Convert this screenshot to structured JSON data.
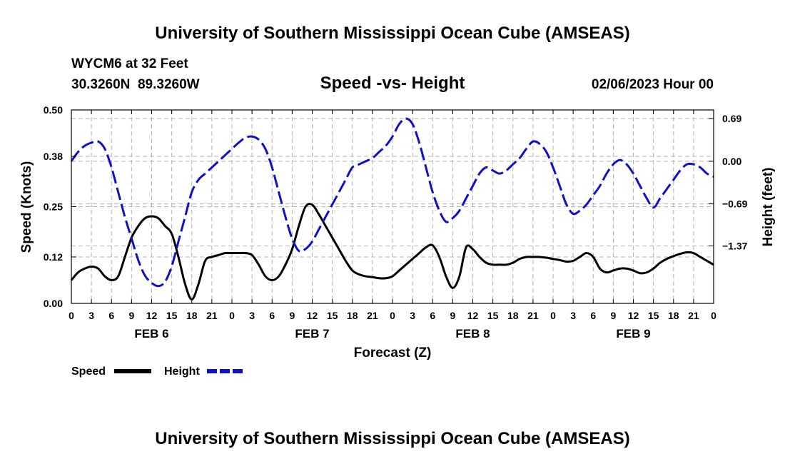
{
  "page": {
    "title_top": "University of Southern Mississippi Ocean Cube (AMSEAS)",
    "title_bottom": "University of Southern Mississippi Ocean Cube (AMSEAS)",
    "station": "WYCM6 at 32 Feet",
    "coordinates": "30.3260N  89.3260W",
    "chart_title": "Speed -vs- Height",
    "datetime": "02/06/2023 Hour 00"
  },
  "chart_data": {
    "type": "line",
    "title": "Speed -vs- Height",
    "xlabel": "Forecast (Z)",
    "ylabel": "Speed (Knots)",
    "y2label": "Height (feet)",
    "xlim": [
      0,
      96
    ],
    "ylim": [
      0,
      0.5
    ],
    "y2lim": [
      -2.3,
      0.83
    ],
    "grid": true,
    "x_ticks": [
      0,
      3,
      6,
      9,
      12,
      15,
      18,
      21,
      24,
      27,
      30,
      33,
      36,
      39,
      42,
      45,
      48,
      51,
      54,
      57,
      60,
      63,
      66,
      69,
      72,
      75,
      78,
      81,
      84,
      87,
      90,
      93,
      96
    ],
    "x_tick_labels": [
      "0",
      "3",
      "6",
      "9",
      "12",
      "15",
      "18",
      "21",
      "0",
      "3",
      "6",
      "9",
      "12",
      "15",
      "18",
      "21",
      "0",
      "3",
      "6",
      "9",
      "12",
      "15",
      "18",
      "21",
      "0",
      "3",
      "6",
      "9",
      "12",
      "15",
      "18",
      "21",
      "0"
    ],
    "day_labels": [
      {
        "label": "FEB 6",
        "x": 12
      },
      {
        "label": "FEB 7",
        "x": 36
      },
      {
        "label": "FEB 8",
        "x": 60
      },
      {
        "label": "FEB 9",
        "x": 84
      }
    ],
    "y_ticks": [
      0.0,
      0.12,
      0.25,
      0.38,
      0.5
    ],
    "y_tick_labels": [
      "0.00",
      "0.12",
      "0.25",
      "0.38",
      "0.50"
    ],
    "y2_ticks": [
      -1.37,
      -0.69,
      0.0,
      0.69
    ],
    "y2_tick_labels": [
      "−1.37",
      "−0.69",
      "0.00",
      "0.69"
    ],
    "legend": [
      {
        "name": "Speed",
        "color": "#000000",
        "dash": "solid"
      },
      {
        "name": "Height",
        "color": "#1010c8",
        "dash": "dashed"
      }
    ],
    "series": [
      {
        "name": "Speed",
        "axis": "left",
        "color": "#000000",
        "dash": "solid",
        "x": [
          0,
          1,
          2,
          3,
          4,
          5,
          6,
          7,
          8,
          9,
          10,
          11,
          12,
          13,
          14,
          15,
          16,
          17,
          18,
          19,
          20,
          21,
          22,
          23,
          24,
          25,
          26,
          27,
          28,
          29,
          30,
          31,
          32,
          33,
          34,
          35,
          36,
          37,
          38,
          39,
          40,
          41,
          42,
          43,
          44,
          45,
          46,
          47,
          48,
          49,
          50,
          51,
          52,
          53,
          54,
          55,
          56,
          57,
          58,
          59,
          60,
          61,
          62,
          63,
          64,
          65,
          66,
          67,
          68,
          69,
          70,
          71,
          72,
          73,
          74,
          75,
          76,
          77,
          78,
          79,
          80,
          81,
          82,
          83,
          84,
          85,
          86,
          87,
          88,
          89,
          90,
          91,
          92,
          93,
          94,
          95,
          96
        ],
        "values": [
          0.06,
          0.08,
          0.09,
          0.095,
          0.09,
          0.07,
          0.06,
          0.07,
          0.12,
          0.17,
          0.2,
          0.22,
          0.225,
          0.22,
          0.2,
          0.18,
          0.12,
          0.05,
          0.01,
          0.05,
          0.11,
          0.12,
          0.125,
          0.13,
          0.13,
          0.13,
          0.13,
          0.125,
          0.1,
          0.07,
          0.06,
          0.07,
          0.1,
          0.14,
          0.2,
          0.25,
          0.255,
          0.23,
          0.2,
          0.17,
          0.14,
          0.11,
          0.085,
          0.075,
          0.07,
          0.068,
          0.065,
          0.065,
          0.07,
          0.085,
          0.1,
          0.115,
          0.13,
          0.145,
          0.15,
          0.12,
          0.07,
          0.04,
          0.07,
          0.145,
          0.14,
          0.12,
          0.105,
          0.1,
          0.1,
          0.1,
          0.105,
          0.115,
          0.12,
          0.12,
          0.12,
          0.118,
          0.115,
          0.112,
          0.108,
          0.11,
          0.12,
          0.13,
          0.12,
          0.09,
          0.08,
          0.085,
          0.09,
          0.09,
          0.085,
          0.078,
          0.08,
          0.09,
          0.105,
          0.115,
          0.122,
          0.128,
          0.132,
          0.13,
          0.12,
          0.11,
          0.1
        ]
      },
      {
        "name": "Height",
        "axis": "right",
        "color": "#1010c8",
        "dash": "dashed",
        "x": [
          0,
          1,
          2,
          3,
          4,
          5,
          6,
          7,
          8,
          9,
          10,
          11,
          12,
          13,
          14,
          15,
          16,
          17,
          18,
          19,
          20,
          21,
          22,
          23,
          24,
          25,
          26,
          27,
          28,
          29,
          30,
          31,
          32,
          33,
          34,
          35,
          36,
          37,
          38,
          39,
          40,
          41,
          42,
          43,
          44,
          45,
          46,
          47,
          48,
          49,
          50,
          51,
          52,
          53,
          54,
          55,
          56,
          57,
          58,
          59,
          60,
          61,
          62,
          63,
          64,
          65,
          66,
          67,
          68,
          69,
          70,
          71,
          72,
          73,
          74,
          75,
          76,
          77,
          78,
          79,
          80,
          81,
          82,
          83,
          84,
          85,
          86,
          87,
          88,
          89,
          90,
          91,
          92,
          93,
          94,
          95,
          96
        ],
        "values": [
          0.0,
          0.15,
          0.25,
          0.3,
          0.32,
          0.2,
          -0.1,
          -0.5,
          -0.9,
          -1.25,
          -1.6,
          -1.85,
          -1.97,
          -2.02,
          -1.95,
          -1.7,
          -1.3,
          -0.9,
          -0.5,
          -0.3,
          -0.2,
          -0.1,
          0.0,
          0.1,
          0.2,
          0.3,
          0.38,
          0.4,
          0.35,
          0.2,
          -0.1,
          -0.5,
          -0.9,
          -1.25,
          -1.45,
          -1.42,
          -1.3,
          -1.1,
          -0.9,
          -0.7,
          -0.5,
          -0.3,
          -0.1,
          -0.05,
          0.0,
          0.05,
          0.15,
          0.25,
          0.4,
          0.6,
          0.69,
          0.6,
          0.3,
          -0.1,
          -0.5,
          -0.8,
          -0.98,
          -0.92,
          -0.8,
          -0.6,
          -0.4,
          -0.2,
          -0.1,
          -0.15,
          -0.2,
          -0.15,
          -0.05,
          0.05,
          0.2,
          0.32,
          0.28,
          0.15,
          -0.1,
          -0.4,
          -0.7,
          -0.85,
          -0.8,
          -0.7,
          -0.55,
          -0.4,
          -0.2,
          -0.05,
          0.02,
          -0.05,
          -0.2,
          -0.4,
          -0.6,
          -0.75,
          -0.6,
          -0.45,
          -0.3,
          -0.15,
          -0.05,
          -0.05,
          -0.1,
          -0.2,
          -0.25
        ]
      }
    ]
  }
}
